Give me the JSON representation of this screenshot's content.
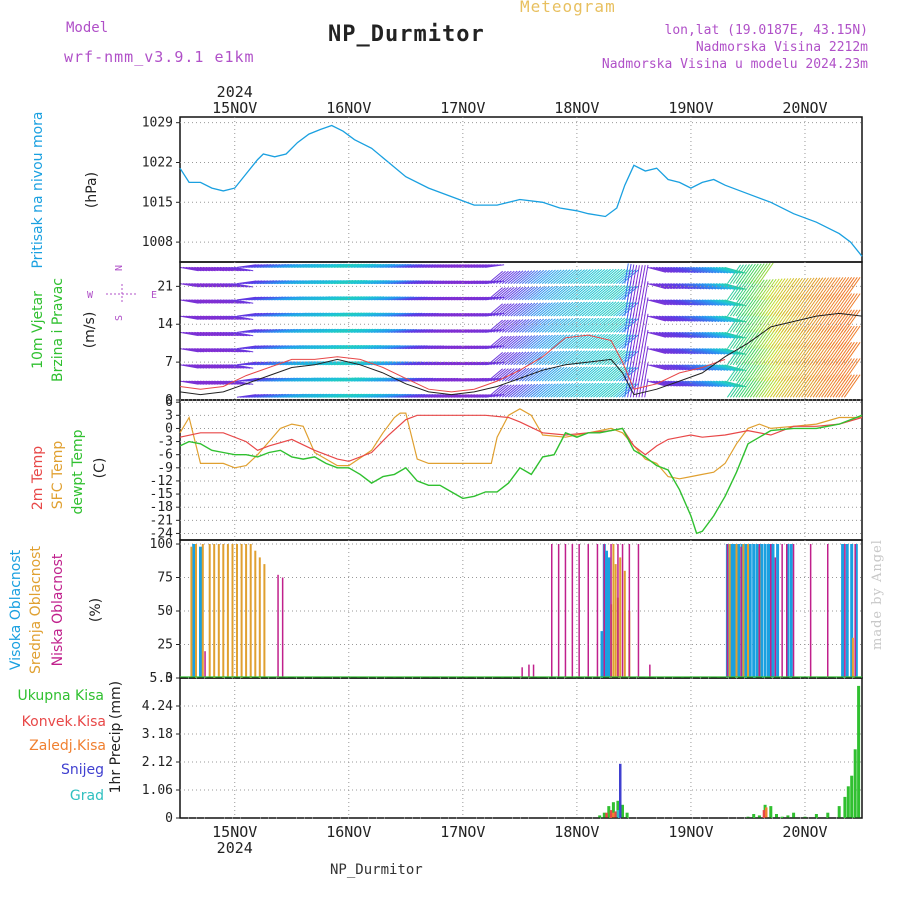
{
  "header": {
    "title": "NP_Durmitor",
    "meteogram_label": "Meteogram",
    "model_label": "Model",
    "model_value": "wrf-nmm_v3.9.1  e1km",
    "info_lines": [
      "lon,lat (19.0187E, 43.15N)",
      "Nadmorska Visina 2212m",
      "Nadmorska Visina u modelu 2024.23m"
    ]
  },
  "footer": {
    "name": "NP_Durmitor"
  },
  "watermark": "made by Angel",
  "colors": {
    "pressure": "#1aa0e0",
    "temp2m": "#e84848",
    "sfc_temp": "#e0a030",
    "dewpoint": "#30c030",
    "high_cloud": "#1aa0e0",
    "mid_cloud": "#e0a030",
    "low_cloud": "#c0208c",
    "precip_total": "#30c030",
    "precip_convective": "#e84848",
    "precip_frozen": "#f08030",
    "precip_snow": "#4040d0",
    "precip_hail": "#30c0c0",
    "wind_speed": "#222222",
    "wind_gust": "#e84848",
    "axis_label_purple": "#b050c8"
  },
  "chart_data": [
    {
      "type": "line",
      "id": "pressure",
      "ylabel_left": "Pritisak na nivou mora",
      "unit": "(hPa)",
      "yticks": [
        1008,
        1015,
        1022,
        1029
      ],
      "ylim": [
        1004.5,
        1030
      ],
      "xlim": [
        14.52,
        20.5
      ],
      "xticks": [
        "15NOV",
        "16NOV",
        "17NOV",
        "18NOV",
        "19NOV",
        "20NOV"
      ],
      "year": "2024",
      "series": [
        {
          "x": [
            14.52,
            14.6,
            14.7,
            14.8,
            14.9,
            15.0,
            15.1,
            15.2,
            15.25,
            15.35,
            15.45,
            15.55,
            15.65,
            15.75,
            15.85,
            15.95,
            16.05,
            16.2,
            16.35,
            16.5,
            16.7,
            16.9,
            17.1,
            17.3,
            17.5,
            17.7,
            17.85,
            18.0,
            18.1,
            18.25,
            18.35,
            18.42,
            18.5,
            18.6,
            18.7,
            18.8,
            18.9,
            19.0,
            19.1,
            19.2,
            19.3,
            19.5,
            19.7,
            19.9,
            20.1,
            20.3,
            20.4,
            20.5
          ],
          "values": [
            1021.0,
            1018.5,
            1018.5,
            1017.5,
            1017.0,
            1017.5,
            1020.0,
            1022.5,
            1023.5,
            1023.0,
            1023.5,
            1025.5,
            1027.0,
            1027.8,
            1028.5,
            1027.5,
            1026.0,
            1024.5,
            1022.0,
            1019.5,
            1017.5,
            1016.0,
            1014.5,
            1014.5,
            1015.5,
            1015.0,
            1014.0,
            1013.5,
            1013.0,
            1012.5,
            1014.0,
            1018.0,
            1021.5,
            1020.5,
            1021.0,
            1019.0,
            1018.5,
            1017.5,
            1018.5,
            1019.0,
            1018.0,
            1016.5,
            1015.0,
            1013.0,
            1011.5,
            1009.5,
            1008.0,
            1005.5
          ]
        }
      ]
    },
    {
      "type": "line",
      "id": "wind",
      "ylabel_left": [
        "10m Vjetar",
        "Brzina i Pravac"
      ],
      "unit": "(m/s)",
      "compass": [
        "N",
        "W",
        "E",
        "S"
      ],
      "yticks": [
        0,
        7,
        14,
        21
      ],
      "ylim": [
        0,
        25.5
      ],
      "xlim": [
        14.52,
        20.5
      ],
      "barb_levels": [
        0.5,
        3.5,
        6.5,
        9.5,
        12.5,
        15.5,
        18.5,
        21.5,
        24.5
      ],
      "series": [
        {
          "name": "speed",
          "x": [
            14.52,
            14.7,
            14.9,
            15.1,
            15.3,
            15.5,
            15.7,
            15.9,
            16.1,
            16.3,
            16.5,
            16.7,
            16.9,
            17.1,
            17.3,
            17.5,
            17.7,
            17.9,
            18.1,
            18.3,
            18.4,
            18.5,
            18.7,
            18.9,
            19.1,
            19.3,
            19.5,
            19.7,
            19.9,
            20.1,
            20.3,
            20.5
          ],
          "values": [
            1.5,
            1.0,
            1.5,
            3.0,
            4.5,
            6.0,
            6.5,
            7.5,
            6.5,
            5.0,
            3.0,
            1.5,
            1.0,
            1.5,
            2.5,
            4.0,
            5.5,
            6.5,
            7.0,
            7.5,
            5.0,
            1.0,
            2.0,
            3.5,
            5.0,
            8.0,
            10.5,
            13.5,
            14.5,
            15.5,
            16.0,
            15.5
          ]
        },
        {
          "name": "gust",
          "x": [
            14.52,
            14.7,
            14.9,
            15.1,
            15.3,
            15.5,
            15.7,
            15.9,
            16.1,
            16.3,
            16.5,
            16.7,
            16.9,
            17.1,
            17.3,
            17.5,
            17.7,
            17.9,
            18.1,
            18.3,
            18.4,
            18.5,
            18.7,
            18.9,
            19.1,
            19.3
          ],
          "values": [
            2.5,
            2.0,
            2.5,
            4.5,
            6.0,
            7.5,
            7.5,
            8.0,
            7.5,
            6.0,
            4.0,
            2.0,
            1.5,
            2.0,
            3.5,
            5.5,
            8.0,
            11.5,
            12.0,
            11.0,
            7.0,
            2.0,
            3.0,
            5.0,
            6.0,
            7.5
          ]
        }
      ]
    },
    {
      "type": "line",
      "id": "temperature",
      "ylabel_left": [
        "2m Temp",
        "SFC Temp",
        "dewpt Temp"
      ],
      "unit": "(C)",
      "yticks": [
        -24,
        -21,
        -18,
        -15,
        -12,
        -9,
        -6,
        -3,
        0,
        3,
        6
      ],
      "ylim": [
        -25.5,
        6.5
      ],
      "xlim": [
        14.52,
        20.5
      ],
      "series": [
        {
          "name": "2m Temp",
          "x": [
            14.52,
            14.7,
            14.9,
            15.1,
            15.2,
            15.3,
            15.5,
            15.7,
            15.9,
            16.0,
            16.2,
            16.35,
            16.5,
            16.6,
            16.8,
            17.0,
            17.2,
            17.4,
            17.5,
            17.7,
            17.9,
            18.1,
            18.3,
            18.4,
            18.5,
            18.6,
            18.7,
            18.8,
            18.9,
            19.0,
            19.1,
            19.3,
            19.5,
            19.7,
            19.9,
            20.1,
            20.3,
            20.5
          ],
          "values": [
            -2.0,
            -1.0,
            -1.0,
            -3.0,
            -5.0,
            -4.0,
            -2.5,
            -5.0,
            -7.0,
            -7.5,
            -5.5,
            -1.5,
            2.0,
            3.0,
            3.0,
            3.0,
            3.0,
            2.5,
            1.5,
            -1.0,
            -1.5,
            -1.0,
            -0.5,
            0.0,
            -4.0,
            -6.0,
            -4.0,
            -2.5,
            -2.0,
            -1.5,
            -2.0,
            -1.5,
            -0.5,
            -1.5,
            0.5,
            0.5,
            1.0,
            2.5
          ]
        },
        {
          "name": "SFC Temp",
          "x": [
            14.52,
            14.6,
            14.7,
            14.8,
            14.9,
            15.0,
            15.1,
            15.2,
            15.3,
            15.4,
            15.5,
            15.6,
            15.7,
            15.9,
            16.0,
            16.2,
            16.3,
            16.4,
            16.45,
            16.5,
            16.6,
            16.7,
            17.0,
            17.25,
            17.3,
            17.4,
            17.5,
            17.6,
            17.7,
            17.9,
            18.1,
            18.3,
            18.4,
            18.5,
            18.6,
            18.7,
            18.8,
            18.9,
            19.0,
            19.1,
            19.2,
            19.3,
            19.4,
            19.5,
            19.6,
            19.7,
            19.9,
            20.1,
            20.3,
            20.5
          ],
          "values": [
            -1.0,
            2.5,
            -8.0,
            -8.0,
            -8.0,
            -9.0,
            -8.5,
            -6.0,
            -3.0,
            0.0,
            1.0,
            0.5,
            -5.5,
            -8.5,
            -8.5,
            -5.0,
            -1.0,
            2.5,
            3.5,
            3.5,
            -7.0,
            -8.0,
            -8.0,
            -8.0,
            -2.0,
            3.0,
            4.5,
            3.0,
            -1.5,
            -2.0,
            -1.0,
            0.0,
            -1.0,
            -4.0,
            -7.0,
            -8.0,
            -11.0,
            -11.5,
            -11.0,
            -10.5,
            -10.0,
            -8.0,
            -3.5,
            0.0,
            1.0,
            0.0,
            0.5,
            1.0,
            2.5,
            2.5
          ]
        },
        {
          "name": "dewpt Temp",
          "x": [
            14.52,
            14.6,
            14.7,
            14.8,
            14.9,
            15.0,
            15.1,
            15.2,
            15.3,
            15.4,
            15.5,
            15.6,
            15.7,
            15.8,
            15.9,
            16.0,
            16.1,
            16.2,
            16.3,
            16.4,
            16.5,
            16.6,
            16.7,
            16.8,
            16.9,
            17.0,
            17.1,
            17.2,
            17.3,
            17.4,
            17.5,
            17.6,
            17.7,
            17.8,
            17.9,
            18.0,
            18.1,
            18.2,
            18.3,
            18.4,
            18.5,
            18.6,
            18.7,
            18.8,
            18.9,
            19.0,
            19.05,
            19.1,
            19.2,
            19.3,
            19.4,
            19.5,
            19.6,
            19.7,
            19.9,
            20.1,
            20.3,
            20.5
          ],
          "values": [
            -4.0,
            -3.0,
            -3.5,
            -5.0,
            -5.5,
            -6.0,
            -6.0,
            -6.5,
            -5.5,
            -5.0,
            -6.5,
            -7.0,
            -6.5,
            -8.0,
            -9.0,
            -9.0,
            -10.5,
            -12.5,
            -11.0,
            -10.5,
            -9.0,
            -12.0,
            -13.0,
            -13.0,
            -14.5,
            -16.0,
            -15.5,
            -14.5,
            -14.5,
            -12.5,
            -9.0,
            -10.5,
            -6.5,
            -6.0,
            -1.0,
            -2.0,
            -1.0,
            -1.0,
            -0.5,
            0.0,
            -5.0,
            -6.5,
            -8.5,
            -9.5,
            -14.0,
            -20.0,
            -24.0,
            -23.5,
            -20.0,
            -15.5,
            -10.0,
            -3.5,
            -2.0,
            -0.5,
            0.0,
            0.0,
            1.0,
            3.0
          ]
        }
      ]
    },
    {
      "type": "bar",
      "id": "cloud",
      "ylabel_left": [
        "Visoka Oblacnost",
        "Srednja Oblacnost",
        "Niska Oblacnost"
      ],
      "unit": "(%)",
      "yticks": [
        0,
        25,
        50,
        75,
        100
      ],
      "ylim": [
        0,
        103
      ],
      "xlim": [
        14.52,
        20.5
      ],
      "series": [
        {
          "name": "Visoka Oblacnost",
          "x": [
            14.64,
            14.7,
            18.22,
            18.24,
            18.26,
            18.28,
            19.32,
            19.36,
            19.38,
            19.42,
            19.45,
            19.48,
            19.52,
            19.55,
            19.58,
            19.62,
            19.65,
            19.68,
            19.72,
            19.76,
            19.85,
            19.88,
            20.33,
            20.37,
            20.41,
            20.45
          ],
          "values": [
            100,
            98,
            35,
            100,
            95,
            90,
            100,
            100,
            100,
            100,
            100,
            100,
            100,
            100,
            100,
            100,
            100,
            100,
            100,
            100,
            100,
            100,
            100,
            100,
            100,
            100
          ]
        },
        {
          "name": "Srednja Oblacnost",
          "x": [
            14.62,
            14.66,
            14.72,
            14.78,
            14.82,
            14.86,
            14.9,
            14.94,
            14.98,
            15.02,
            15.06,
            15.1,
            15.14,
            15.18,
            15.22,
            15.26,
            18.3,
            18.32,
            18.34,
            18.36,
            18.38,
            18.42,
            18.46,
            19.34,
            19.4,
            19.46,
            19.5,
            19.6,
            20.42
          ],
          "values": [
            98,
            100,
            100,
            100,
            100,
            100,
            100,
            100,
            100,
            100,
            100,
            100,
            100,
            95,
            90,
            85,
            55,
            100,
            85,
            60,
            90,
            80,
            50,
            100,
            100,
            100,
            100,
            98,
            30
          ]
        },
        {
          "name": "Niska Oblacnost",
          "x": [
            14.74,
            15.38,
            15.42,
            17.52,
            17.58,
            17.62,
            17.78,
            17.84,
            17.9,
            17.96,
            18.02,
            18.1,
            18.18,
            18.24,
            18.3,
            18.36,
            18.4,
            18.46,
            18.54,
            18.64,
            19.32,
            19.44,
            19.6,
            19.7,
            19.74,
            19.8,
            19.84,
            19.9,
            20.05,
            20.2,
            20.35,
            20.44
          ],
          "values": [
            20,
            77,
            75,
            8,
            10,
            10,
            100,
            100,
            100,
            100,
            100,
            100,
            100,
            100,
            100,
            100,
            100,
            100,
            100,
            10,
            100,
            98,
            100,
            100,
            90,
            100,
            100,
            100,
            100,
            100,
            100,
            100
          ]
        }
      ]
    },
    {
      "type": "bar",
      "id": "precip",
      "ylabel_left": "1hr Precip",
      "unit": "(mm)",
      "legend": [
        "Ukupna Kisa",
        "Konvek.Kisa",
        "Zaledj.Kisa",
        "Snijeg",
        "Grad"
      ],
      "yticks": [
        0,
        1.06,
        2.12,
        3.18,
        4.24,
        5.3
      ],
      "ylim": [
        0,
        5.3
      ],
      "xlim": [
        14.52,
        20.5
      ],
      "series": [
        {
          "name": "Ukupna Kisa",
          "x": [
            18.2,
            18.24,
            18.28,
            18.32,
            18.36,
            18.4,
            18.44,
            19.5,
            19.55,
            19.6,
            19.65,
            19.7,
            19.75,
            19.8,
            19.85,
            19.9,
            20.0,
            20.1,
            20.2,
            20.3,
            20.35,
            20.38,
            20.41,
            20.44,
            20.47
          ],
          "values": [
            0.1,
            0.2,
            0.45,
            0.6,
            0.65,
            0.5,
            0.2,
            0.05,
            0.15,
            0.1,
            0.5,
            0.45,
            0.15,
            0.05,
            0.1,
            0.2,
            0.05,
            0.15,
            0.2,
            0.45,
            0.8,
            1.2,
            1.6,
            2.6,
            5.0
          ]
        },
        {
          "name": "Konvek.Kisa",
          "x": [
            18.26,
            18.3,
            18.34,
            19.64
          ],
          "values": [
            0.2,
            0.3,
            0.25,
            0.3
          ]
        },
        {
          "name": "Zaledj.Kisa",
          "x": [
            18.32,
            19.66
          ],
          "values": [
            0.2,
            0.4
          ]
        },
        {
          "name": "Snijeg",
          "x": [
            18.38
          ],
          "values": [
            2.05
          ]
        },
        {
          "name": "Grad",
          "x": [
            18.36
          ],
          "values": [
            0.3
          ]
        }
      ]
    }
  ]
}
